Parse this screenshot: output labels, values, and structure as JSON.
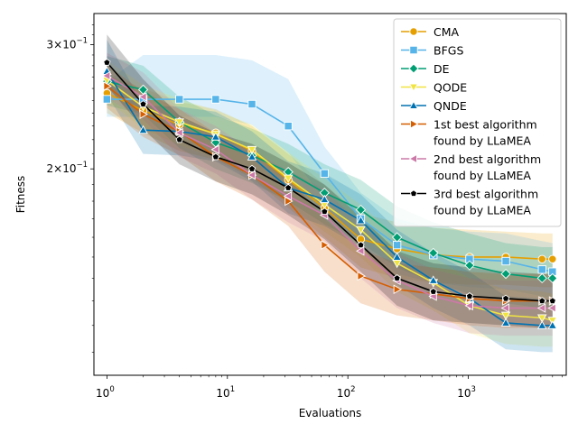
{
  "chart_data": {
    "type": "line",
    "xlabel": "Evaluations",
    "ylabel": "Fitness",
    "xscale": "log",
    "yscale": "log",
    "xlim": [
      0.78,
      6500
    ],
    "ylim": [
      0.102,
      0.332
    ],
    "x_ticks": [
      {
        "value": 1,
        "base": "10",
        "exp": "0"
      },
      {
        "value": 10,
        "base": "10",
        "exp": "1"
      },
      {
        "value": 100,
        "base": "10",
        "exp": "2"
      },
      {
        "value": 1000,
        "base": "10",
        "exp": "3"
      }
    ],
    "y_ticks": [
      {
        "value": 0.3,
        "mant": "3",
        "base": "10",
        "exp": "−1"
      },
      {
        "value": 0.2,
        "mant": "2",
        "base": "10",
        "exp": "−1"
      }
    ],
    "grid": false,
    "legend_position": "top-right",
    "x": [
      1,
      2,
      4,
      8,
      16,
      32,
      64,
      128,
      256,
      512,
      1024,
      2048,
      4096,
      5000
    ],
    "series": [
      {
        "name": "CMA",
        "color": "#E69F00",
        "marker": "circle",
        "values": [
          0.256,
          0.242,
          0.231,
          0.225,
          0.212,
          0.193,
          0.176,
          0.159,
          0.154,
          0.151,
          0.15,
          0.15,
          0.149,
          0.149
        ],
        "lower": [
          0.24,
          0.225,
          0.212,
          0.206,
          0.194,
          0.176,
          0.16,
          0.145,
          0.14,
          0.138,
          0.137,
          0.137,
          0.136,
          0.136
        ],
        "upper": [
          0.272,
          0.26,
          0.249,
          0.243,
          0.23,
          0.21,
          0.19,
          0.173,
          0.168,
          0.165,
          0.164,
          0.163,
          0.162,
          0.162
        ]
      },
      {
        "name": "BFGS",
        "color": "#56B4E9",
        "marker": "square",
        "values": [
          0.251,
          0.251,
          0.251,
          0.251,
          0.247,
          0.23,
          0.197,
          0.17,
          0.156,
          0.151,
          0.149,
          0.148,
          0.144,
          0.143
        ],
        "lower": [
          0.237,
          0.237,
          0.237,
          0.237,
          0.231,
          0.211,
          0.181,
          0.156,
          0.142,
          0.138,
          0.136,
          0.135,
          0.132,
          0.131
        ],
        "upper": [
          0.266,
          0.29,
          0.29,
          0.29,
          0.285,
          0.268,
          0.215,
          0.185,
          0.17,
          0.165,
          0.163,
          0.162,
          0.158,
          0.157
        ]
      },
      {
        "name": "DE",
        "color": "#009E73",
        "marker": "diamond",
        "values": [
          0.266,
          0.259,
          0.233,
          0.218,
          0.209,
          0.198,
          0.185,
          0.175,
          0.16,
          0.152,
          0.146,
          0.142,
          0.14,
          0.14
        ],
        "lower": [
          0.246,
          0.239,
          0.214,
          0.2,
          0.191,
          0.18,
          0.167,
          0.157,
          0.145,
          0.138,
          0.133,
          0.129,
          0.127,
          0.127
        ],
        "upper": [
          0.289,
          0.28,
          0.253,
          0.238,
          0.228,
          0.217,
          0.203,
          0.193,
          0.177,
          0.168,
          0.162,
          0.157,
          0.155,
          0.155
        ]
      },
      {
        "name": "QODE",
        "color": "#F0E442",
        "marker": "triangle-down",
        "values": [
          0.267,
          0.245,
          0.233,
          0.224,
          0.213,
          0.194,
          0.178,
          0.164,
          0.147,
          0.138,
          0.128,
          0.124,
          0.123,
          0.122
        ],
        "lower": [
          0.25,
          0.228,
          0.216,
          0.207,
          0.196,
          0.178,
          0.163,
          0.15,
          0.134,
          0.126,
          0.117,
          0.113,
          0.112,
          0.112
        ],
        "upper": [
          0.285,
          0.263,
          0.251,
          0.242,
          0.231,
          0.211,
          0.194,
          0.178,
          0.16,
          0.15,
          0.14,
          0.135,
          0.134,
          0.133
        ]
      },
      {
        "name": "QNDE",
        "color": "#0072B2",
        "marker": "triangle-up",
        "values": [
          0.275,
          0.227,
          0.226,
          0.222,
          0.208,
          0.188,
          0.181,
          0.169,
          0.15,
          0.139,
          0.131,
          0.121,
          0.12,
          0.12
        ],
        "lower": [
          0.255,
          0.21,
          0.209,
          0.205,
          0.192,
          0.173,
          0.166,
          0.155,
          0.137,
          0.127,
          0.12,
          0.111,
          0.11,
          0.11
        ],
        "upper": [
          0.305,
          0.246,
          0.245,
          0.241,
          0.226,
          0.205,
          0.197,
          0.184,
          0.164,
          0.152,
          0.143,
          0.132,
          0.131,
          0.131
        ]
      },
      {
        "name": "1st best algorithm\nfound by LLaMEA",
        "color": "#D55E00",
        "marker": "triangle-right",
        "values": [
          0.262,
          0.239,
          0.226,
          0.208,
          0.196,
          0.18,
          0.156,
          0.141,
          0.135,
          0.133,
          0.131,
          0.13,
          0.13,
          0.13
        ],
        "lower": [
          0.244,
          0.222,
          0.209,
          0.192,
          0.181,
          0.166,
          0.143,
          0.129,
          0.124,
          0.122,
          0.12,
          0.119,
          0.119,
          0.119
        ],
        "upper": [
          0.281,
          0.257,
          0.243,
          0.225,
          0.212,
          0.195,
          0.17,
          0.154,
          0.147,
          0.145,
          0.143,
          0.142,
          0.142,
          0.142
        ]
      },
      {
        "name": "2nd best algorithm\nfound by LLaMEA",
        "color": "#CC79A7",
        "marker": "triangle-left",
        "values": [
          0.271,
          0.253,
          0.225,
          0.213,
          0.196,
          0.183,
          0.172,
          0.153,
          0.139,
          0.132,
          0.128,
          0.127,
          0.127,
          0.127
        ],
        "lower": [
          0.252,
          0.235,
          0.208,
          0.197,
          0.181,
          0.168,
          0.158,
          0.14,
          0.127,
          0.121,
          0.117,
          0.116,
          0.116,
          0.116
        ],
        "upper": [
          0.292,
          0.274,
          0.243,
          0.23,
          0.212,
          0.199,
          0.187,
          0.167,
          0.152,
          0.144,
          0.14,
          0.139,
          0.139,
          0.139
        ]
      },
      {
        "name": "3rd best algorithm\nfound by LLaMEA",
        "color": "#000000",
        "marker": "pentagon",
        "values": [
          0.283,
          0.247,
          0.22,
          0.208,
          0.2,
          0.188,
          0.174,
          0.156,
          0.14,
          0.134,
          0.132,
          0.131,
          0.13,
          0.13
        ],
        "lower": [
          0.262,
          0.228,
          0.203,
          0.192,
          0.184,
          0.172,
          0.159,
          0.143,
          0.128,
          0.122,
          0.121,
          0.12,
          0.119,
          0.119
        ],
        "upper": [
          0.31,
          0.268,
          0.238,
          0.225,
          0.217,
          0.204,
          0.19,
          0.171,
          0.153,
          0.147,
          0.145,
          0.143,
          0.142,
          0.142
        ]
      }
    ]
  }
}
